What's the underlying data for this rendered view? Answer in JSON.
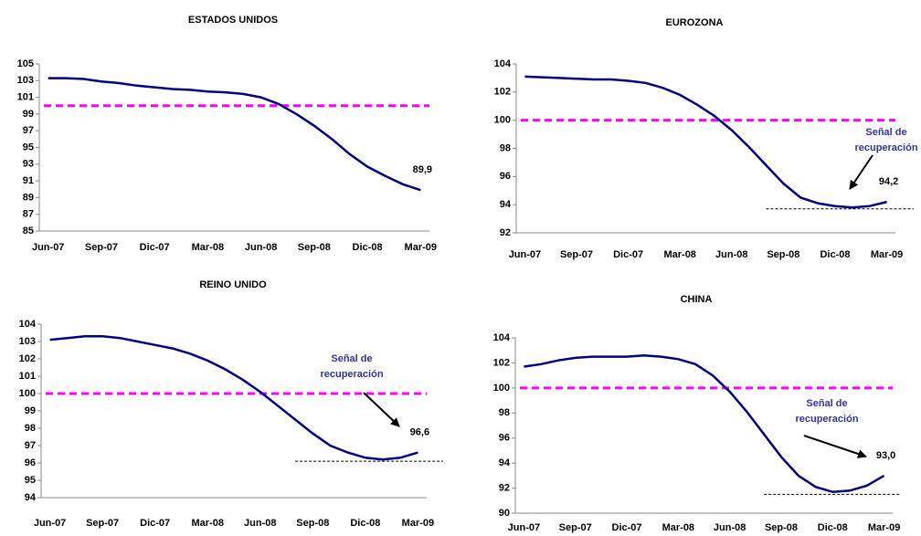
{
  "chart_data": [
    {
      "type": "line",
      "title": "ESTADOS UNIDOS",
      "categories": [
        "Jun-07",
        null,
        null,
        "Sep-07",
        null,
        null,
        "Dic-07",
        null,
        null,
        "Mar-08",
        null,
        null,
        "Jun-08",
        null,
        null,
        "Sep-08",
        null,
        null,
        "Dic-08",
        null,
        null,
        "Mar-09"
      ],
      "series": [
        {
          "color": "#000080",
          "values": [
            103.3,
            103.3,
            103.2,
            102.9,
            102.7,
            102.4,
            102.2,
            102.0,
            101.9,
            101.7,
            101.6,
            101.4,
            101.0,
            100.2,
            99.0,
            97.6,
            96.0,
            94.2,
            92.7,
            91.6,
            90.6,
            89.9
          ],
          "value_labels": [
            null,
            null,
            null,
            null,
            null,
            null,
            null,
            null,
            null,
            null,
            null,
            null,
            null,
            null,
            null,
            null,
            null,
            null,
            null,
            null,
            null,
            "89,9"
          ]
        }
      ],
      "ylim": [
        85,
        105
      ],
      "yticks": [
        85,
        87,
        89,
        91,
        93,
        95,
        97,
        99,
        101,
        103,
        105
      ],
      "reference_line": {
        "value": 100,
        "color": "#ff00ff"
      }
    },
    {
      "type": "line",
      "title": "EUROZONA",
      "categories": [
        "Jun-07",
        null,
        null,
        "Sep-07",
        null,
        null,
        "Dic-07",
        null,
        null,
        "Mar-08",
        null,
        null,
        "Jun-08",
        null,
        null,
        "Sep-08",
        null,
        null,
        "Dic-08",
        null,
        null,
        "Mar-09"
      ],
      "series": [
        {
          "color": "#000080",
          "values": [
            103.1,
            103.05,
            103.0,
            102.95,
            102.9,
            102.9,
            102.8,
            102.65,
            102.3,
            101.8,
            101.1,
            100.3,
            99.3,
            98.1,
            96.8,
            95.5,
            94.5,
            94.1,
            93.9,
            93.8,
            93.9,
            94.2
          ],
          "value_labels": [
            null,
            null,
            null,
            null,
            null,
            null,
            null,
            null,
            null,
            null,
            null,
            null,
            null,
            null,
            null,
            null,
            null,
            null,
            null,
            null,
            null,
            "94,2"
          ]
        }
      ],
      "ylim": [
        92,
        104
      ],
      "yticks": [
        92,
        94,
        96,
        98,
        100,
        102,
        104
      ],
      "reference_line": {
        "value": 100,
        "color": "#ff00ff"
      },
      "support_line": {
        "value": 93.7,
        "start": "Sep-08"
      },
      "annotation": [
        "Señal de",
        "recuperación"
      ]
    },
    {
      "type": "line",
      "title": "REINO UNIDO",
      "categories": [
        "Jun-07",
        null,
        null,
        "Sep-07",
        null,
        null,
        "Dic-07",
        null,
        null,
        "Mar-08",
        null,
        null,
        "Jun-08",
        null,
        null,
        "Sep-08",
        null,
        null,
        "Dic-08",
        null,
        null,
        "Mar-09"
      ],
      "series": [
        {
          "color": "#000080",
          "values": [
            103.1,
            103.2,
            103.3,
            103.3,
            103.2,
            103.0,
            102.8,
            102.6,
            102.3,
            101.9,
            101.4,
            100.8,
            100.1,
            99.3,
            98.5,
            97.7,
            97.0,
            96.6,
            96.3,
            96.2,
            96.3,
            96.6
          ],
          "value_labels": [
            null,
            null,
            null,
            null,
            null,
            null,
            null,
            null,
            null,
            null,
            null,
            null,
            null,
            null,
            null,
            null,
            null,
            null,
            null,
            null,
            null,
            "96,6"
          ]
        }
      ],
      "ylim": [
        94,
        104
      ],
      "yticks": [
        94,
        95,
        96,
        97,
        98,
        99,
        100,
        101,
        102,
        103,
        104
      ],
      "reference_line": {
        "value": 100,
        "color": "#ff00ff"
      },
      "support_line": {
        "value": 96.1,
        "start": "Sep-08"
      },
      "annotation": [
        "Señal de",
        "recuperación"
      ]
    },
    {
      "type": "line",
      "title": "CHINA",
      "categories": [
        "Jun-07",
        null,
        null,
        "Sep-07",
        null,
        null,
        "Dic-07",
        null,
        null,
        "Mar-08",
        null,
        null,
        "Jun-08",
        null,
        null,
        "Sep-08",
        null,
        null,
        "Dic-08",
        null,
        null,
        "Mar-09"
      ],
      "series": [
        {
          "color": "#000080",
          "values": [
            101.7,
            101.9,
            102.2,
            102.4,
            102.5,
            102.5,
            102.5,
            102.6,
            102.5,
            102.3,
            101.9,
            101.0,
            99.7,
            98.1,
            96.3,
            94.5,
            93.0,
            92.1,
            91.7,
            91.8,
            92.2,
            93.0
          ],
          "value_labels": [
            null,
            null,
            null,
            null,
            null,
            null,
            null,
            null,
            null,
            null,
            null,
            null,
            null,
            null,
            null,
            null,
            null,
            null,
            null,
            null,
            null,
            "93,0"
          ]
        }
      ],
      "ylim": [
        90,
        104
      ],
      "yticks": [
        90,
        92,
        94,
        96,
        98,
        100,
        102,
        104
      ],
      "reference_line": {
        "value": 100,
        "color": "#ff00ff"
      },
      "support_line": {
        "value": 91.5,
        "start": "Sep-08"
      },
      "annotation": [
        "Señal de",
        "recuperación"
      ]
    }
  ]
}
